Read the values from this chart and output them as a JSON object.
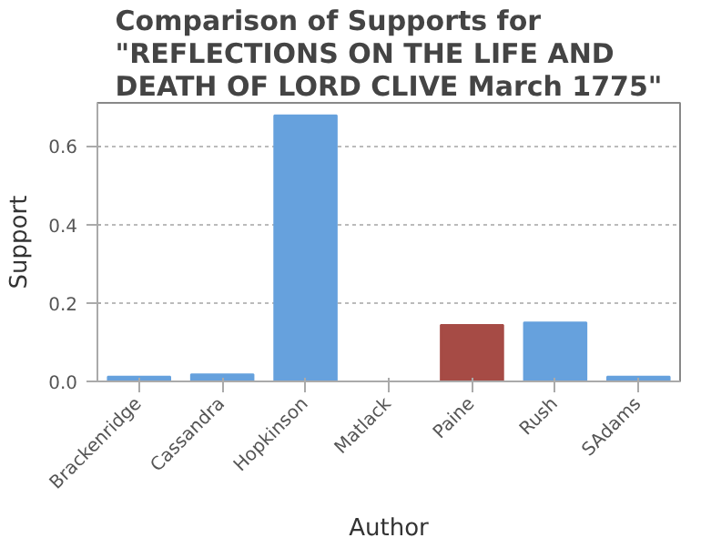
{
  "chart_data": {
    "type": "bar",
    "title": "Comparison of Supports for\n\"REFLECTIONS ON THE LIFE AND\nDEATH OF LORD CLIVE March 1775\"",
    "xlabel": "Author",
    "ylabel": "Support",
    "categories": [
      "Brackenridge",
      "Cassandra",
      "Hopkinson",
      "Matlack",
      "Paine",
      "Rush",
      "SAdams"
    ],
    "values": [
      0.012,
      0.018,
      0.678,
      0,
      0.144,
      0.15,
      0.012
    ],
    "colors": [
      "#66a1dd",
      "#66a1dd",
      "#66a1dd",
      "#66a1dd",
      "#a64b45",
      "#66a1dd",
      "#66a1dd"
    ],
    "ylim": [
      0,
      0.71
    ],
    "yticks": [
      {
        "value": 0,
        "label": "0.0"
      },
      {
        "value": 0.2,
        "label": "0.2"
      },
      {
        "value": 0.4,
        "label": "0.4"
      },
      {
        "value": 0.6,
        "label": "0.6"
      }
    ],
    "grid": "y"
  }
}
